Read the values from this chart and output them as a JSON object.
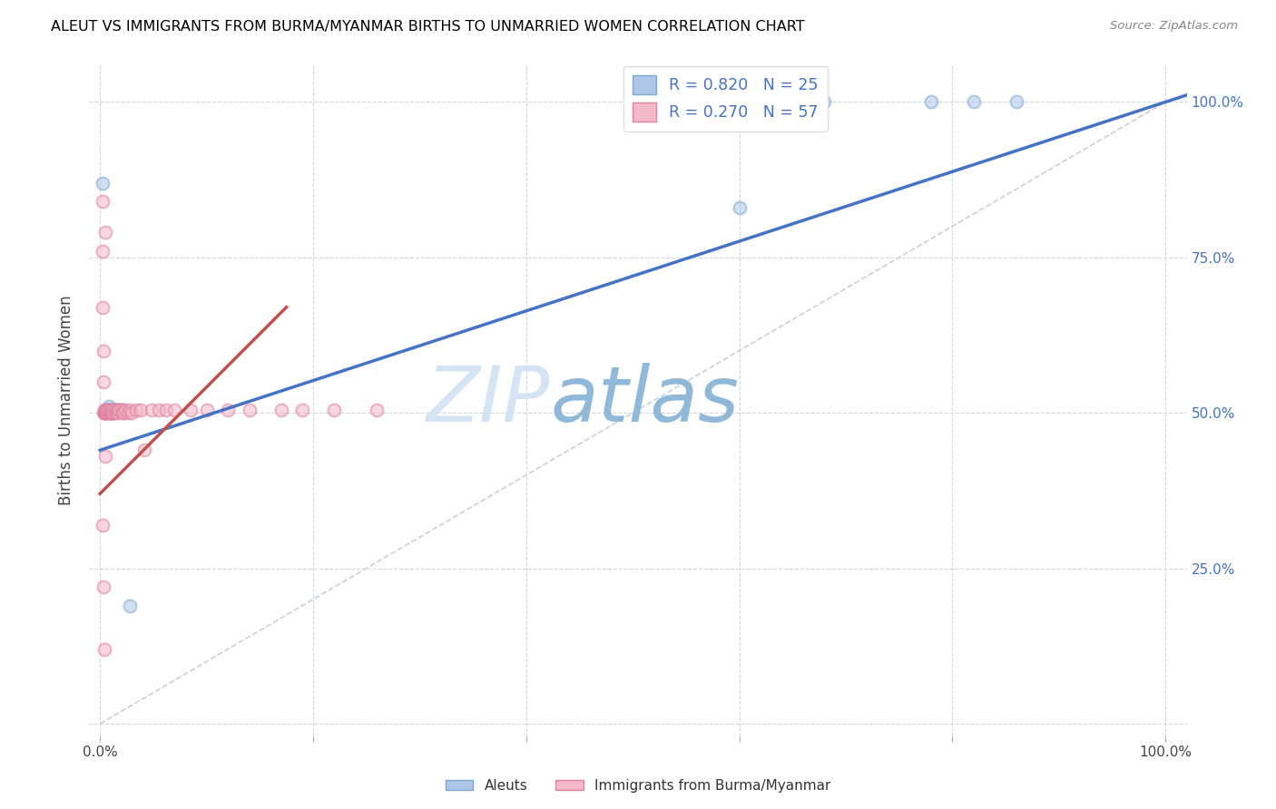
{
  "title": "ALEUT VS IMMIGRANTS FROM BURMA/MYANMAR BIRTHS TO UNMARRIED WOMEN CORRELATION CHART",
  "source": "Source: ZipAtlas.com",
  "ylabel": "Births to Unmarried Women",
  "aleut_color": "#aec6e8",
  "aleut_edge": "#7aaad0",
  "burma_color": "#f4b8c8",
  "burma_edge": "#e080a0",
  "aleut_line_color": "#4472c4",
  "burma_line_color": "#c0504d",
  "ref_line_color": "#c8d0dc",
  "background_color": "#ffffff",
  "grid_color": "#d0d8e4",
  "title_color": "#000000",
  "source_color": "#888888",
  "watermark_zip": "ZIP",
  "watermark_atlas": "atlas",
  "watermark_color_zip": "#c8d8f0",
  "watermark_color_atlas": "#8ab8e0",
  "legend_r1": "R = 0.820",
  "legend_n1": "N = 25",
  "legend_r2": "R = 0.270",
  "legend_n2": "N = 57",
  "bottom_legend": [
    "Aleuts",
    "Immigrants from Burma/Myanmar"
  ],
  "xlim": [
    0.0,
    1.0
  ],
  "ylim": [
    0.0,
    1.0
  ],
  "dot_size": 100,
  "dot_alpha": 0.55,
  "dot_linewidth": 1.5,
  "aleut_x": [
    0.002,
    0.006,
    0.007,
    0.008,
    0.009,
    0.01,
    0.011,
    0.012,
    0.013,
    0.014,
    0.016,
    0.018,
    0.022,
    0.028,
    0.5,
    0.52,
    0.53,
    0.535,
    0.54,
    0.545,
    0.6,
    0.68,
    0.78,
    0.82,
    0.86
  ],
  "aleut_y": [
    0.87,
    0.5,
    0.505,
    0.51,
    0.505,
    0.505,
    0.505,
    0.5,
    0.505,
    0.505,
    0.505,
    0.505,
    0.505,
    0.19,
    1.0,
    1.0,
    1.0,
    1.0,
    1.0,
    1.0,
    0.83,
    1.0,
    1.0,
    1.0,
    1.0
  ],
  "burma_x": [
    0.002,
    0.002,
    0.002,
    0.003,
    0.003,
    0.003,
    0.004,
    0.004,
    0.004,
    0.005,
    0.005,
    0.005,
    0.005,
    0.006,
    0.006,
    0.007,
    0.007,
    0.008,
    0.008,
    0.009,
    0.009,
    0.01,
    0.01,
    0.011,
    0.012,
    0.012,
    0.013,
    0.014,
    0.015,
    0.016,
    0.017,
    0.018,
    0.02,
    0.021,
    0.022,
    0.024,
    0.026,
    0.028,
    0.03,
    0.034,
    0.038,
    0.042,
    0.048,
    0.055,
    0.062,
    0.07,
    0.085,
    0.1,
    0.12,
    0.14,
    0.17,
    0.19,
    0.22,
    0.26,
    0.002,
    0.003,
    0.004
  ],
  "burma_y": [
    0.84,
    0.76,
    0.67,
    0.6,
    0.55,
    0.5,
    0.5,
    0.5,
    0.505,
    0.79,
    0.5,
    0.505,
    0.43,
    0.5,
    0.505,
    0.5,
    0.505,
    0.5,
    0.505,
    0.5,
    0.505,
    0.5,
    0.505,
    0.5,
    0.5,
    0.505,
    0.5,
    0.505,
    0.5,
    0.5,
    0.505,
    0.505,
    0.505,
    0.5,
    0.5,
    0.505,
    0.5,
    0.505,
    0.5,
    0.505,
    0.505,
    0.44,
    0.505,
    0.505,
    0.505,
    0.505,
    0.505,
    0.505,
    0.505,
    0.505,
    0.505,
    0.505,
    0.505,
    0.505,
    0.32,
    0.22,
    0.12
  ]
}
